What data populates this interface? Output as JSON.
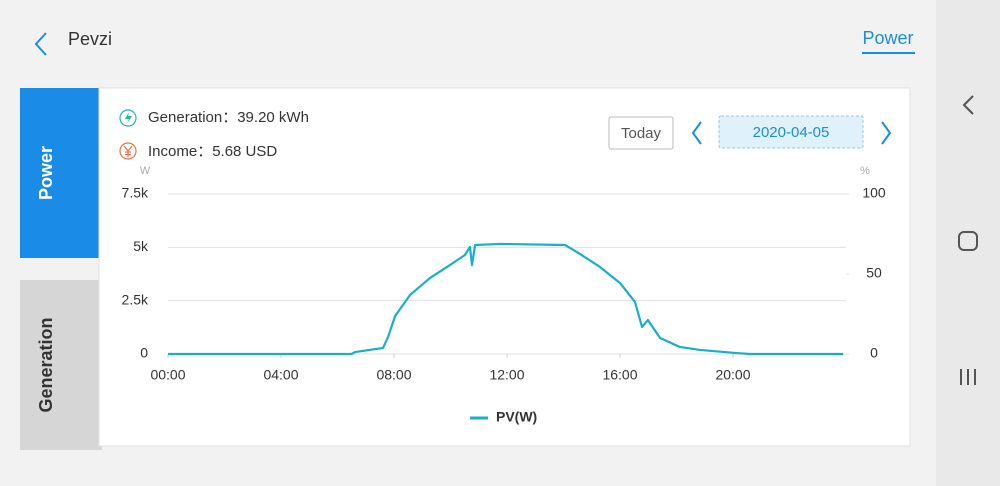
{
  "header": {
    "title": "Pevzi",
    "tab": "Power"
  },
  "sidebar": {
    "tabs": [
      "Power",
      "Generation"
    ]
  },
  "summary": {
    "generation": "Generation：39.20 kWh",
    "income": "Income：5.68 USD"
  },
  "date_picker": {
    "today": "Today",
    "date": "2020-04-05"
  },
  "chart_data": {
    "type": "line",
    "y_unit": "W",
    "y2_unit": "%",
    "x": [
      0,
      6.5,
      6.62,
      7.61,
      7.79,
      8.04,
      8.57,
      9.27,
      9.98,
      10.51,
      10.69,
      10.76,
      10.87,
      11.75,
      14.05,
      14.58,
      15.29,
      16.0,
      16.53,
      16.78,
      16.99,
      17.42,
      18.12,
      18.83,
      20.07,
      20.6,
      23.9
    ],
    "series": [
      {
        "name": "PV(W)",
        "color": "#1aaec8",
        "values": [
          0,
          0,
          90,
          280,
          800,
          1780,
          2770,
          3560,
          4170,
          4640,
          5020,
          4170,
          5110,
          5160,
          5110,
          4690,
          4080,
          3330,
          2440,
          1270,
          1590,
          750,
          330,
          190,
          50,
          0,
          0
        ]
      }
    ],
    "xlim": [
      0,
      24
    ],
    "xticks": [
      {
        "value": 0,
        "label": "00:00"
      },
      {
        "value": 4,
        "label": "04:00"
      },
      {
        "value": 8,
        "label": "08:00"
      },
      {
        "value": 12,
        "label": "12:00"
      },
      {
        "value": 16,
        "label": "16:00"
      },
      {
        "value": 20,
        "label": "20:00"
      }
    ],
    "ylim": [
      0,
      7500
    ],
    "yticks": [
      0,
      {
        "value": 2500,
        "label": "2.5k"
      },
      {
        "value": 5000,
        "label": "5k"
      },
      {
        "value": 7500,
        "label": "7.5k"
      }
    ],
    "y2lim": [
      0,
      100
    ],
    "y2ticks": [
      0,
      50,
      100
    ],
    "grid": true
  }
}
